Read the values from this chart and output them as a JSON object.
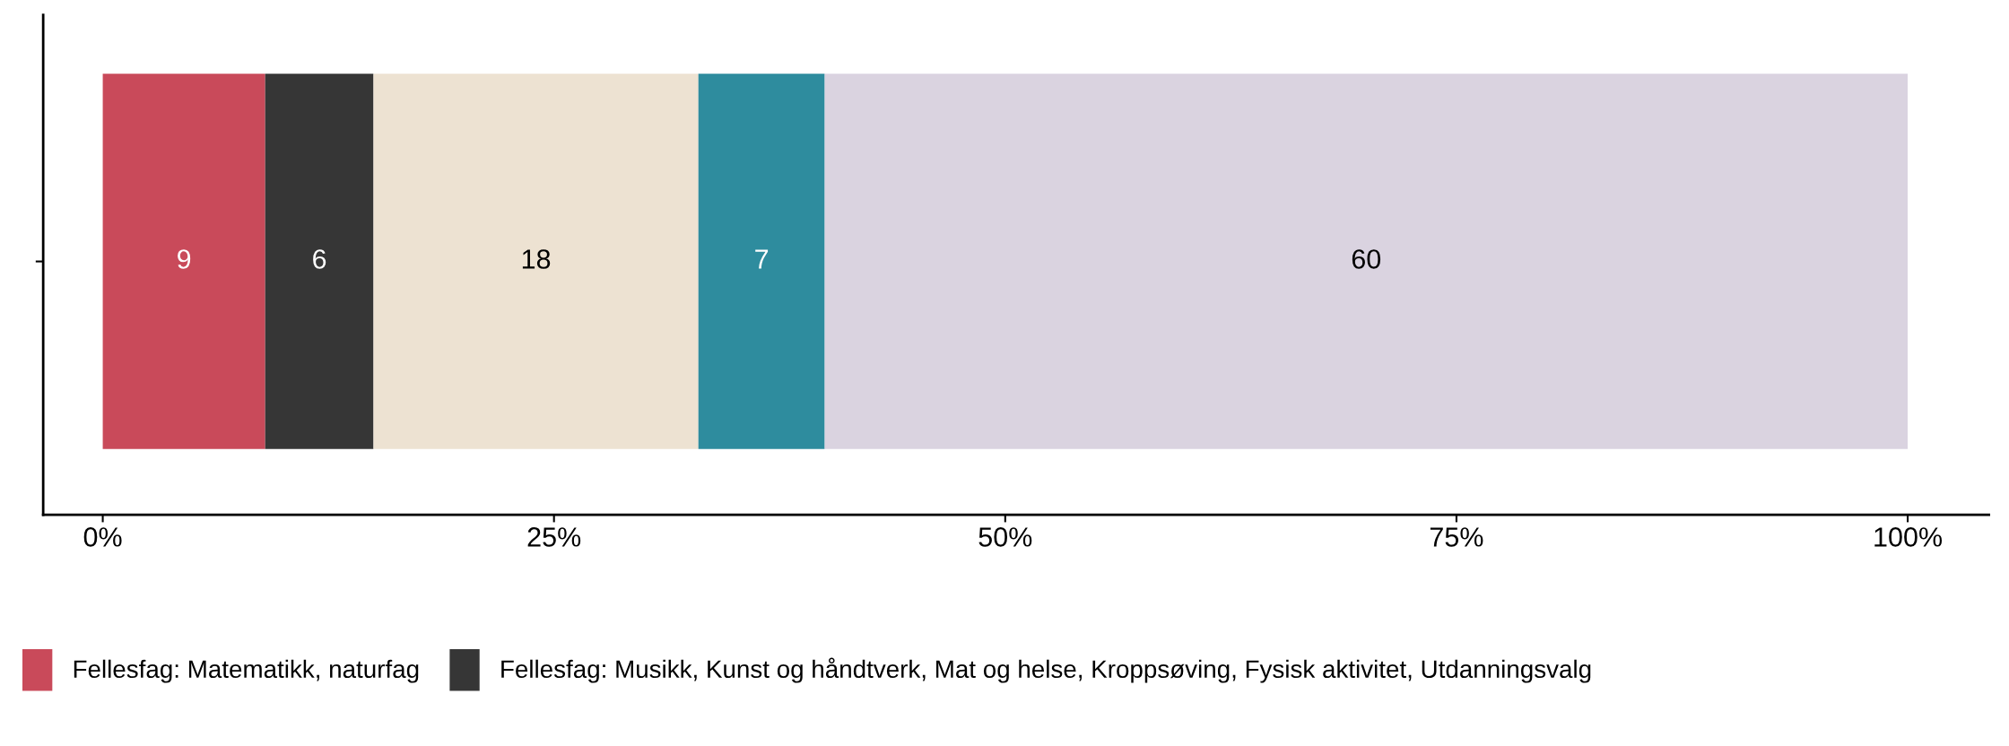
{
  "chart_data": {
    "type": "bar",
    "orientation": "horizontal",
    "stacked": true,
    "categories": [
      null
    ],
    "series": [
      {
        "name": "Fellesfag: Matematikk, naturfag",
        "color": "#c94a5a",
        "values": [
          9
        ]
      },
      {
        "name": "Fellesfag: Musikk, Kunst og håndtverk, Mat og helse, Kroppsøving, Fysisk aktivitet, Utdanningsvalg",
        "color": "#363636",
        "values": [
          6
        ]
      },
      {
        "color": "#ede2d2",
        "values": [
          18
        ]
      },
      {
        "color": "#2e8c9e",
        "values": [
          7
        ]
      },
      {
        "color": "#dad3e0",
        "values": [
          60
        ]
      }
    ],
    "data_labels": true,
    "xlim": [
      -3.3,
      104.5
    ],
    "xticks": [
      {
        "value": 0,
        "label": "0%"
      },
      {
        "value": 25,
        "label": "25%"
      },
      {
        "value": 50,
        "label": "50%"
      },
      {
        "value": 75,
        "label": "75%"
      },
      {
        "value": 100,
        "label": "100%"
      }
    ],
    "grid": false,
    "legend": "bottom"
  }
}
